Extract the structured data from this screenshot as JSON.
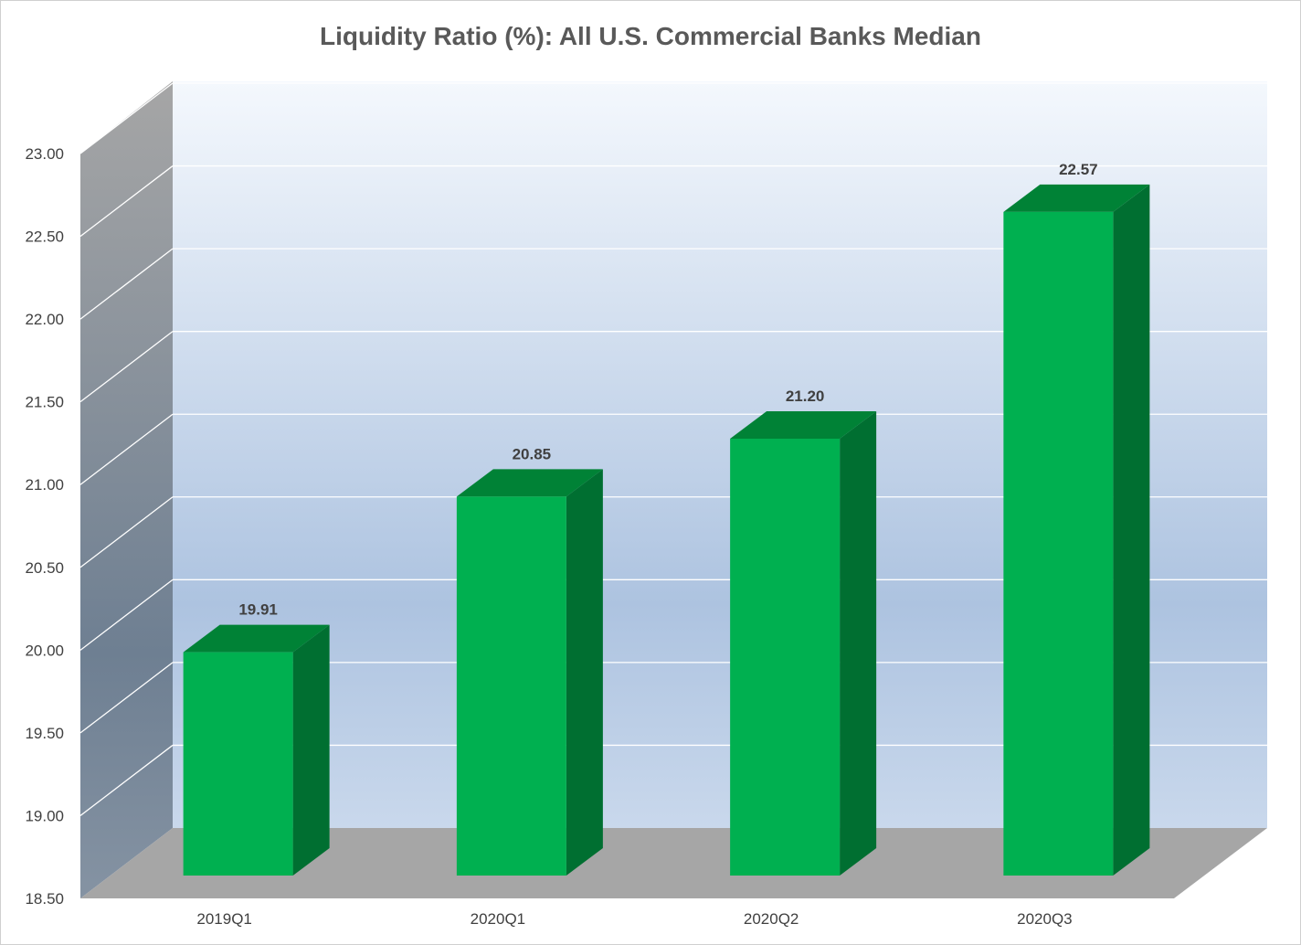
{
  "chart_data": {
    "type": "bar",
    "title": "Liquidity Ratio (%): All U.S. Commercial Banks Median",
    "xlabel": "",
    "ylabel": "",
    "categories": [
      "2019Q1",
      "2020Q1",
      "2020Q2",
      "2020Q3"
    ],
    "values": [
      19.91,
      20.85,
      21.2,
      22.57
    ],
    "data_labels": [
      "19.91",
      "20.85",
      "21.20",
      "22.57"
    ],
    "ylim": [
      18.5,
      23.0
    ],
    "yticks": [
      "18.50",
      "19.00",
      "19.50",
      "20.00",
      "20.50",
      "21.00",
      "21.50",
      "22.00",
      "22.50",
      "23.00"
    ],
    "grid": true,
    "legend": "none",
    "style": "3d-column",
    "colors": {
      "bar_front": "#00b050",
      "bar_top": "#008236",
      "bar_side": "#006f31",
      "floor": "#a6a6a6",
      "back_wall_top": "#f4f8fd",
      "back_wall_bottom": "#adc3e0",
      "side_wall_top": "#a6a6a6",
      "side_wall_bottom": "#6e7f92"
    }
  }
}
